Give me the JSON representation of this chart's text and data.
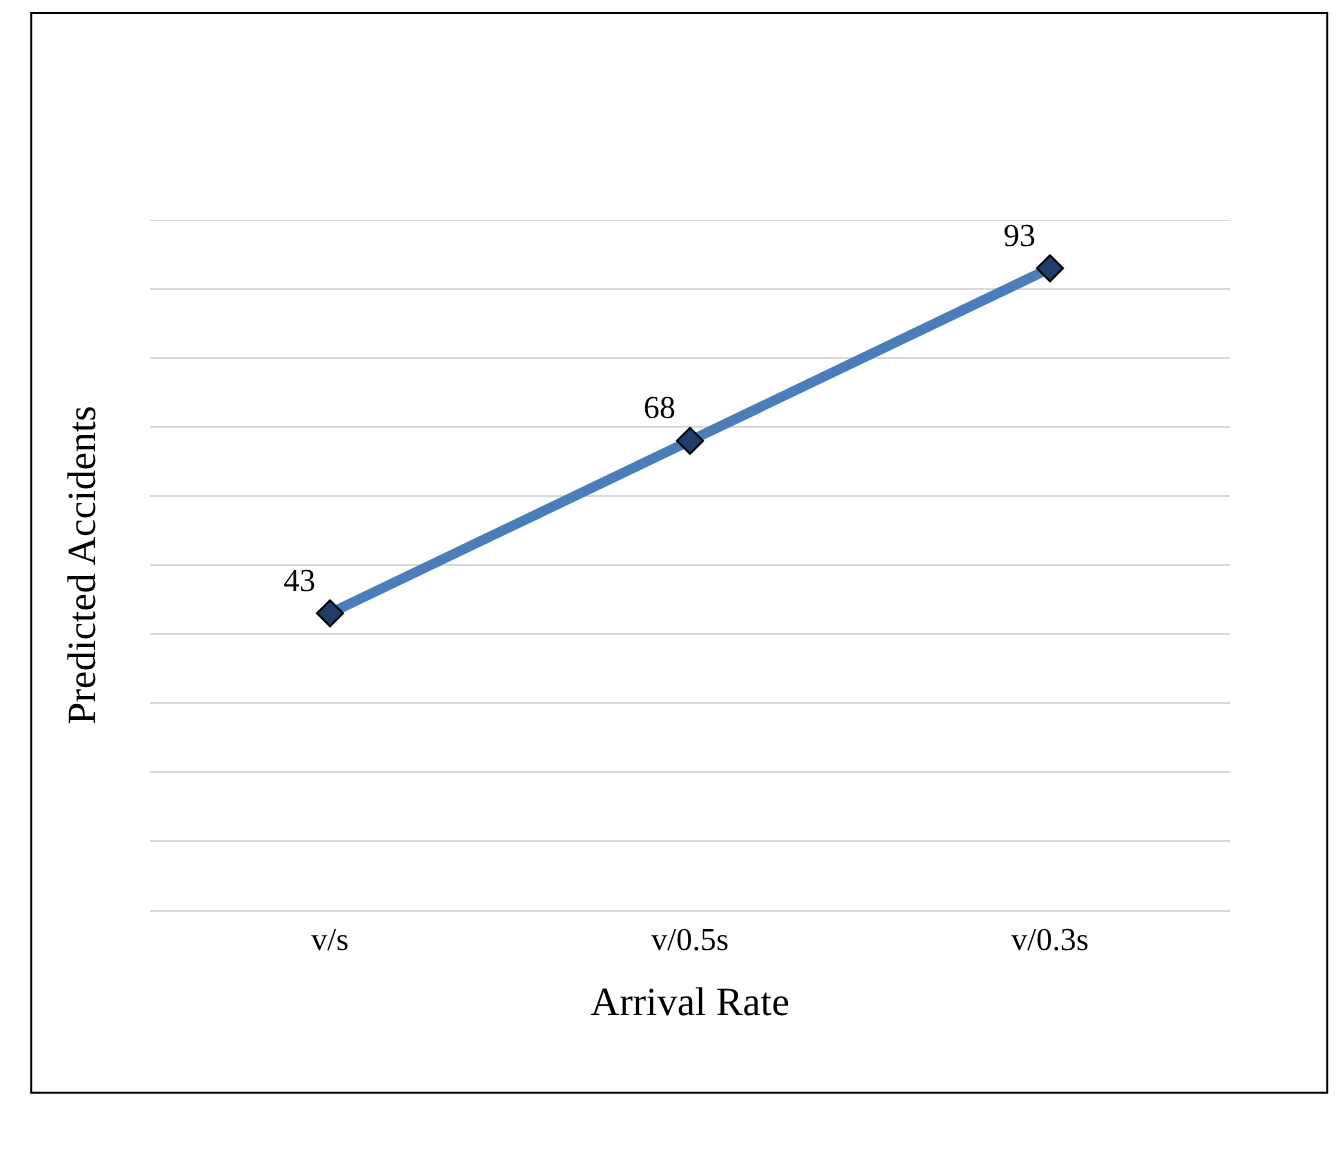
{
  "chart_data": {
    "type": "line",
    "xlabel": "Arrival Rate",
    "ylabel": "Predicted Accidents",
    "categories": [
      "v/s",
      "v/0.5s",
      "v/0.3s"
    ],
    "series": [
      {
        "color": "#4a7ebb",
        "values": [
          43,
          68,
          93
        ]
      }
    ],
    "ylim": [
      0,
      100
    ],
    "yticks": [
      {
        "value": 0,
        "label": null
      },
      {
        "value": 10,
        "label": null
      },
      {
        "value": 20,
        "label": null
      },
      {
        "value": 30,
        "label": null
      },
      {
        "value": 40,
        "label": null
      },
      {
        "value": 50,
        "label": null
      },
      {
        "value": 60,
        "label": null
      },
      {
        "value": 70,
        "label": null
      },
      {
        "value": 80,
        "label": null
      },
      {
        "value": 90,
        "label": null
      },
      {
        "value": 100,
        "label": null
      }
    ],
    "tick_labels": "x",
    "grid": "y",
    "marker": "diamond",
    "line_style": "solid",
    "data_labels": true
  }
}
